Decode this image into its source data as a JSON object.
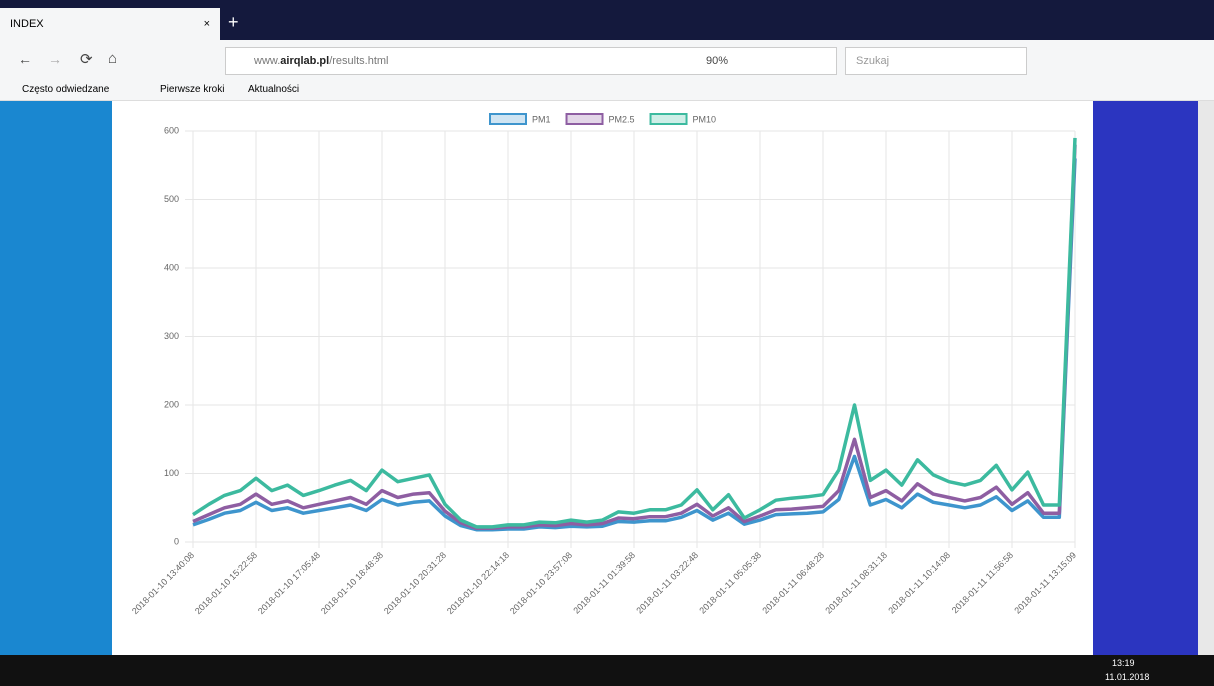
{
  "browser": {
    "tab_title": "INDEX",
    "url_prefix": "www.",
    "url_domain": "airqlab.pl",
    "url_path": "/results.html",
    "zoom": "90%",
    "search_placeholder": "Szukaj",
    "bookmarks": [
      "Często odwiedzane",
      "Pierwsze kroki",
      "Aktualności"
    ]
  },
  "chart_data": {
    "type": "line",
    "categories": [
      "2018-01-10 13:40:08",
      null,
      null,
      null,
      "2018-01-10 15:22:58",
      null,
      null,
      null,
      "2018-01-10 17:05:48",
      null,
      null,
      null,
      "2018-01-10 18:48:38",
      null,
      null,
      null,
      "2018-01-10 20:31:28",
      null,
      null,
      null,
      "2018-01-10 22:14:18",
      null,
      null,
      null,
      "2018-01-10 23:57:08",
      null,
      null,
      null,
      "2018-01-11 01:39:58",
      null,
      null,
      null,
      "2018-01-11 03:22:48",
      null,
      null,
      null,
      "2018-01-11 05:05:38",
      null,
      null,
      null,
      "2018-01-11 06:48:28",
      null,
      null,
      null,
      "2018-01-11 08:31:18",
      null,
      null,
      null,
      "2018-01-11 10:14:08",
      null,
      null,
      null,
      "2018-01-11 11:56:58",
      null,
      null,
      null,
      "2018-01-11 13:15:09"
    ],
    "series": [
      {
        "name": "PM1",
        "color": "#3e95cd",
        "values": [
          25,
          33,
          42,
          46,
          58,
          46,
          50,
          42,
          46,
          50,
          54,
          46,
          62,
          54,
          58,
          60,
          38,
          24,
          18,
          18,
          19,
          19,
          22,
          21,
          23,
          22,
          23,
          30,
          29,
          31,
          31,
          36,
          46,
          32,
          42,
          26,
          32,
          40,
          41,
          42,
          44,
          62,
          125,
          54,
          62,
          50,
          70,
          58,
          54,
          50,
          54,
          66,
          46,
          60,
          36,
          36,
          560
        ]
      },
      {
        "name": "PM2.5",
        "color": "#8e5ea2",
        "values": [
          30,
          40,
          50,
          55,
          70,
          55,
          60,
          50,
          55,
          60,
          65,
          55,
          75,
          65,
          70,
          72,
          45,
          28,
          20,
          20,
          22,
          22,
          25,
          24,
          27,
          25,
          27,
          35,
          34,
          37,
          37,
          42,
          55,
          38,
          50,
          30,
          38,
          47,
          48,
          50,
          52,
          75,
          150,
          65,
          75,
          60,
          85,
          70,
          65,
          60,
          65,
          80,
          55,
          72,
          42,
          42,
          580
        ]
      },
      {
        "name": "PM10",
        "color": "#3cba9f",
        "values": [
          40,
          55,
          68,
          75,
          93,
          75,
          83,
          68,
          75,
          83,
          90,
          75,
          105,
          88,
          93,
          98,
          55,
          32,
          22,
          22,
          25,
          25,
          29,
          28,
          32,
          29,
          32,
          44,
          42,
          47,
          47,
          54,
          76,
          47,
          69,
          35,
          47,
          61,
          64,
          66,
          69,
          105,
          200,
          90,
          105,
          83,
          120,
          98,
          88,
          83,
          90,
          112,
          76,
          102,
          54,
          54,
          590
        ]
      }
    ],
    "ylim": [
      0,
      600
    ],
    "yticks": [
      0,
      100,
      200,
      300,
      400,
      500,
      600
    ],
    "grid": true,
    "legend": "top"
  },
  "taskbar": {
    "time": "13:19",
    "date": "11.01.2018"
  }
}
